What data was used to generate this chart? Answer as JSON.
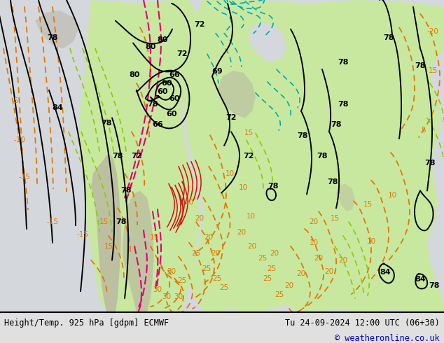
{
  "title_left": "Height/Temp. 925 hPa [gdpm] ECMWF",
  "title_right": "Tu 24-09-2024 12:00 UTC (06+30)",
  "copyright": "© weatheronline.co.uk",
  "bg_color": "#e0e0e0",
  "ocean_color": "#d4d8dc",
  "land_color": "#c8e8a0",
  "land_color2": "#b8dc88",
  "terrain_color": "#b8b0a0",
  "figure_width": 6.34,
  "figure_height": 4.9,
  "dpi": 100,
  "bottom_text_color": "#000000",
  "copyright_color": "#0000cc",
  "font_size_bottom": 8.5,
  "font_size_copyright": 8.5
}
